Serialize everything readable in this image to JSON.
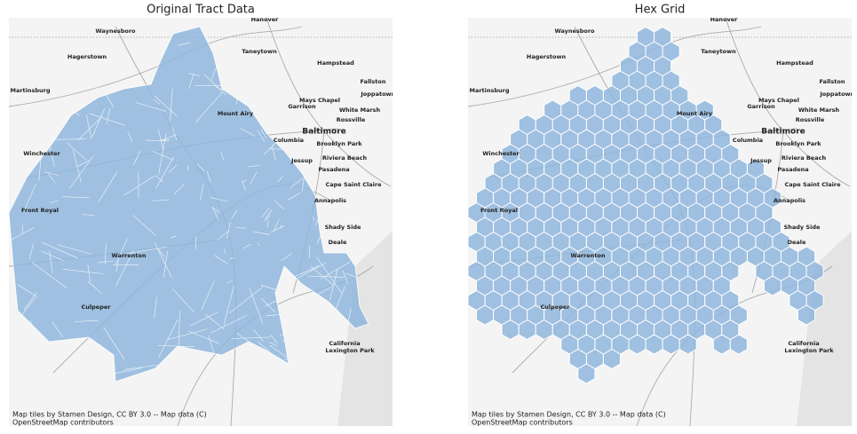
{
  "panels": [
    {
      "title": "Original Tract Data",
      "places": [
        "Hanover",
        "Waynesboro",
        "Hagerstown",
        "Taneytown",
        "Hampstead",
        "Fallston",
        "Joppatowne",
        "Martinsburg",
        "Mays Chapel",
        "Garrison",
        "White Marsh",
        "Mount Airy",
        "Rossville",
        "Baltimore",
        "Columbia",
        "Brooklyn Park",
        "Winchester",
        "Jessup",
        "Riviera Beach",
        "Pasadena",
        "Cape Saint Claire",
        "Annapolis",
        "Shady Side",
        "Deale",
        "California",
        "Lexington Park",
        "Front Royal",
        "Warrenton",
        "Culpeper"
      ],
      "attribution": [
        "Map tiles by Stamen Design, CC BY 3.0 -- Map data (C)",
        "OpenStreetMap contributors"
      ]
    },
    {
      "title": "Hex Grid",
      "places": [
        "Hanover",
        "Waynesboro",
        "Hagerstown",
        "Taneytown",
        "Hampstead",
        "Fallston",
        "Joppatowne",
        "Martinsburg",
        "Mays Chapel",
        "Garrison",
        "White Marsh",
        "Mount Airy",
        "Rossville",
        "Baltimore",
        "Columbia",
        "Brooklyn Park",
        "Winchester",
        "Jessup",
        "Riviera Beach",
        "Pasadena",
        "Cape Saint Claire",
        "Annapolis",
        "Shady Side",
        "Deale",
        "California",
        "Lexington Park",
        "Front Royal",
        "Warrenton",
        "Culpeper"
      ],
      "attribution": [
        "Map tiles by Stamen Design, CC BY 3.0 -- Map data (C)",
        "OpenStreetMap contributors"
      ]
    }
  ]
}
